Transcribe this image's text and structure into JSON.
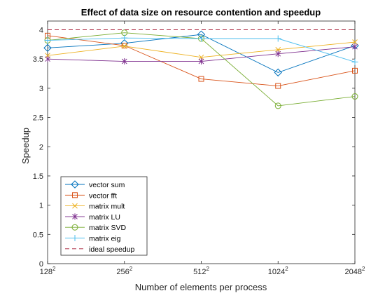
{
  "chart_data": {
    "type": "line",
    "title": "Effect of data size on resource contention and speedup",
    "xlabel": "Number of elements per process",
    "ylabel": "Speedup",
    "x_ticks": [
      {
        "base": "128",
        "exp": "2"
      },
      {
        "base": "256",
        "exp": "2"
      },
      {
        "base": "512",
        "exp": "2"
      },
      {
        "base": "1024",
        "exp": "2"
      },
      {
        "base": "2048",
        "exp": "2"
      }
    ],
    "y_ticks": [
      "0",
      "0.5",
      "1",
      "1.5",
      "2",
      "2.5",
      "3",
      "3.5",
      "4"
    ],
    "ylim": [
      0,
      4.15
    ],
    "grid": false,
    "legend_placement": "bottom-left",
    "series": [
      {
        "name": "vector sum",
        "color": "#0072BD",
        "marker": "diamond",
        "values": [
          3.69,
          3.77,
          3.92,
          3.27,
          3.73
        ]
      },
      {
        "name": "vector fft",
        "color": "#D95319",
        "marker": "square",
        "values": [
          3.9,
          3.73,
          3.16,
          3.04,
          3.3
        ]
      },
      {
        "name": "matrix mult",
        "color": "#EDB120",
        "marker": "x",
        "values": [
          3.56,
          3.72,
          3.53,
          3.66,
          3.79
        ]
      },
      {
        "name": "matrix LU",
        "color": "#7E2F8E",
        "marker": "asterisk",
        "values": [
          3.5,
          3.46,
          3.46,
          3.59,
          3.71
        ]
      },
      {
        "name": "matrix SVD",
        "color": "#77AC30",
        "marker": "circle",
        "values": [
          3.82,
          3.95,
          3.85,
          2.7,
          2.86
        ]
      },
      {
        "name": "matrix eig",
        "color": "#4DBEEE",
        "marker": "plus",
        "values": [
          3.82,
          3.86,
          3.85,
          3.85,
          3.45
        ]
      },
      {
        "name": "ideal speedup",
        "color": "#A2142F",
        "marker": "none",
        "dashed": true,
        "values": [
          4,
          4,
          4,
          4,
          4
        ]
      }
    ]
  }
}
